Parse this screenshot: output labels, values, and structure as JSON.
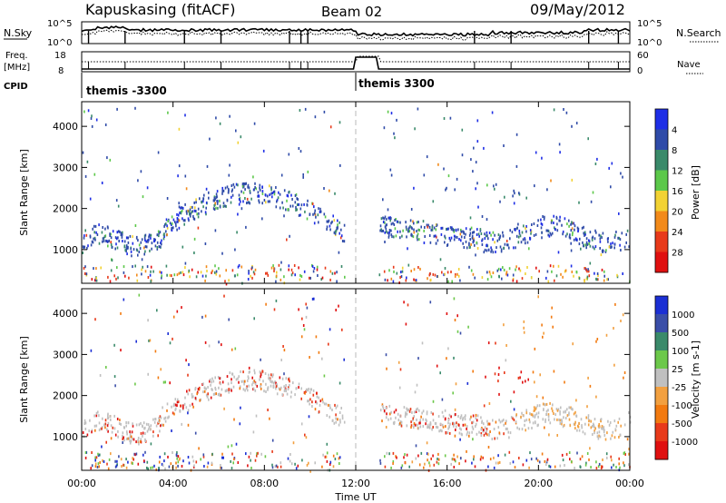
{
  "header": {
    "station": "Kapuskasing (fitACF)",
    "beam": "Beam 02",
    "date": "09/May/2012"
  },
  "noise_panel": {
    "left_label": "N.Sky",
    "right_label": "N.Search",
    "left_ticks": [
      "10^5",
      "10^0"
    ],
    "right_ticks": [
      "10^5",
      "10^0"
    ]
  },
  "freq_panel": {
    "left_label_1": "Freq.",
    "left_label_2": "[MHz]",
    "left_ticks": [
      "18",
      "8"
    ],
    "right_label": "Nave",
    "right_ticks": [
      "60",
      "0"
    ]
  },
  "cpid": {
    "label": "CPID",
    "entries": [
      {
        "text": "themis -3300",
        "start_hour": 0.0
      },
      {
        "text": "themis 3300",
        "start_hour": 12.0
      }
    ]
  },
  "time_axis": {
    "label": "Time UT",
    "ticks": [
      "00:00",
      "04:00",
      "08:00",
      "12:00",
      "16:00",
      "20:00",
      "00:00"
    ]
  },
  "chart_data": [
    {
      "type": "heatmap",
      "title": "",
      "xlabel": "Time UT",
      "ylabel": "Slant Range [km]",
      "x_range_hours": [
        0,
        24
      ],
      "ylim": [
        180,
        4600
      ],
      "yticks": [
        "1000",
        "2000",
        "3000",
        "4000"
      ],
      "colorbar": {
        "label": "Power [dB]",
        "ticks": [
          "4",
          "8",
          "12",
          "16",
          "20",
          "24",
          "28"
        ],
        "colors": [
          "#1e2ee6",
          "#2f4ba8",
          "#3a8a6a",
          "#5cc84a",
          "#f2d233",
          "#f28a1a",
          "#e83a1a",
          "#e01010"
        ]
      },
      "echo_regions": [
        {
          "t_start": 0.2,
          "t_end": 11.5,
          "center_range": 1250,
          "description_level": "mid"
        },
        {
          "t_start": 3.5,
          "t_end": 11.5,
          "center_range": 2250,
          "description_level": "low"
        },
        {
          "t_start": 13.0,
          "t_end": 24.0,
          "center_range": 1400,
          "description_level": "low"
        },
        {
          "t_start": 18.0,
          "t_end": 19.5,
          "center_range": 2400,
          "description_level": "mid"
        }
      ]
    },
    {
      "type": "heatmap",
      "title": "",
      "xlabel": "Time UT",
      "ylabel": "Slant Range [km]",
      "x_range_hours": [
        0,
        24
      ],
      "ylim": [
        180,
        4600
      ],
      "yticks": [
        "1000",
        "2000",
        "3000",
        "4000"
      ],
      "colorbar": {
        "label": "Velocity [m s-1]",
        "ticks": [
          "1000",
          "500",
          "100",
          "25",
          "-25",
          "-100",
          "-500",
          "-1000"
        ],
        "colors": [
          "#1b2fd4",
          "#3a4ea8",
          "#3a8a6a",
          "#6cc84a",
          "#c0c0c0",
          "#f2a040",
          "#f27a10",
          "#e83a1a",
          "#e01010"
        ]
      },
      "echo_regions": [
        {
          "t_start": 3.5,
          "t_end": 11.5,
          "center_range": 2250,
          "dominant": "ground scatter"
        },
        {
          "t_start": 13.0,
          "t_end": 24.0,
          "center_range": 1400,
          "dominant": "ground scatter"
        },
        {
          "t_start": 18.0,
          "t_end": 19.5,
          "center_range": 2400,
          "dominant": "-500 to -1000"
        }
      ]
    }
  ]
}
